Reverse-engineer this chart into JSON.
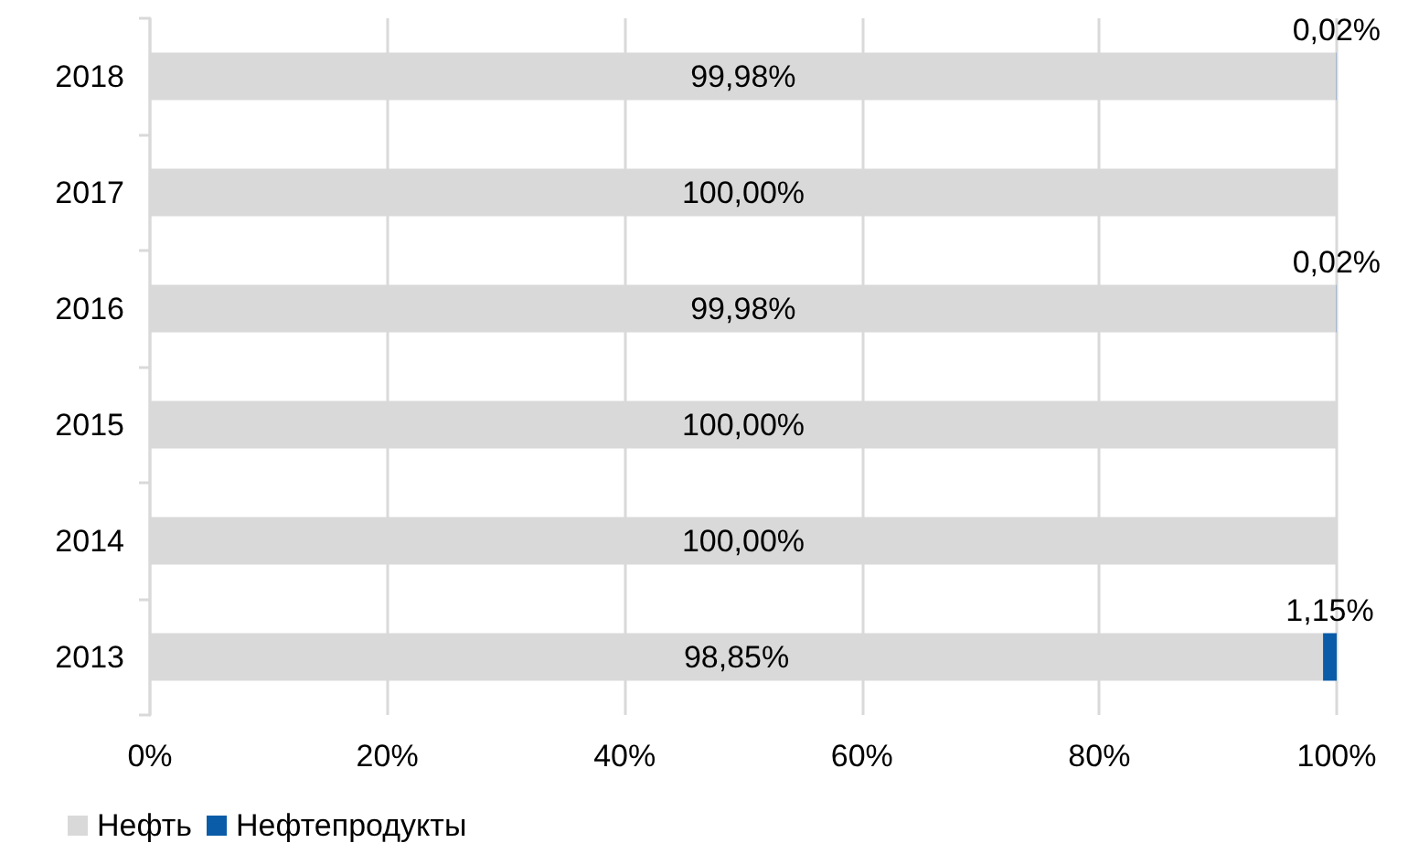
{
  "chart_data": {
    "type": "bar",
    "orientation": "horizontal",
    "stacked": true,
    "categories": [
      "2018",
      "2017",
      "2016",
      "2015",
      "2014",
      "2013"
    ],
    "series": [
      {
        "name": "Нефть",
        "color": "#d9d9d9",
        "values": [
          99.98,
          100,
          99.98,
          100,
          100,
          98.85
        ],
        "value_labels": [
          "99,98%",
          "100,00%",
          "99,98%",
          "100,00%",
          "100,00%",
          "98,85%"
        ]
      },
      {
        "name": "Нефтепродукты",
        "color": "#0a5ca8",
        "values": [
          0.02,
          0,
          0.02,
          0,
          0,
          1.15
        ],
        "value_labels": [
          "0,02%",
          null,
          "0,02%",
          null,
          null,
          "1,15%"
        ]
      }
    ],
    "xlim": [
      0,
      100
    ],
    "xticks": [
      {
        "value": 0,
        "label": "0%"
      },
      {
        "value": 20,
        "label": "20%"
      },
      {
        "value": 40,
        "label": "40%"
      },
      {
        "value": 60,
        "label": "60%"
      },
      {
        "value": 80,
        "label": "80%"
      },
      {
        "value": 100,
        "label": "100%"
      }
    ],
    "grid": "x",
    "legend": "bottom left"
  }
}
